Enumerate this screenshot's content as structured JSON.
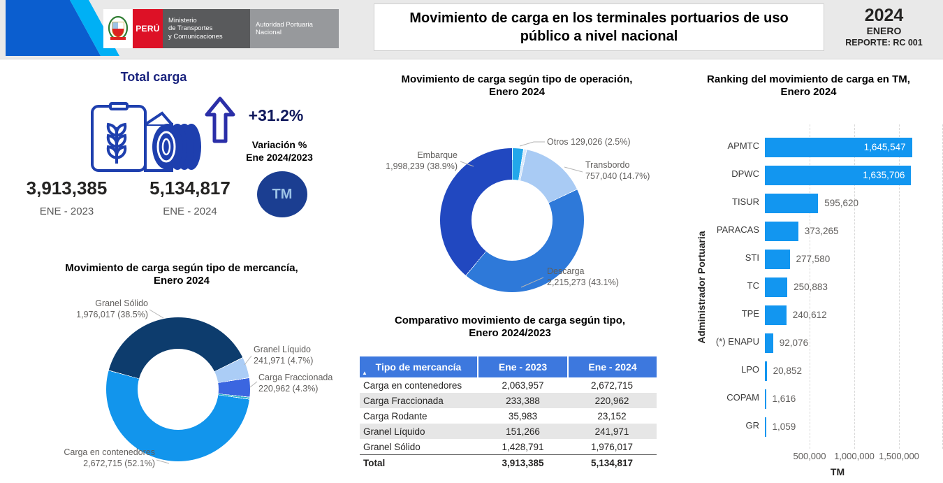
{
  "header": {
    "logo": {
      "peru": "PERÚ",
      "mtc_lines": [
        "Ministerio",
        "de Transportes",
        "y Comunicaciones"
      ],
      "apn_lines": [
        "Autoridad Portuaria",
        "Nacional"
      ]
    },
    "title": "Movimiento de carga en los terminales portuarios de uso público a nivel nacional",
    "year": "2024",
    "month": "ENERO",
    "report": "REPORTE: RC 001"
  },
  "total_carga": {
    "title": "Total carga",
    "variation_pct": "+31.2%",
    "variation_label_line1": "Variación %",
    "variation_label_line2": "Ene 2024/2023",
    "prev_value": "3,913,385",
    "prev_label": "ENE - 2023",
    "curr_value": "5,134,817",
    "curr_label": "ENE - 2024",
    "unit_badge": "TM"
  },
  "chart_data": [
    {
      "type": "pie",
      "title_line1": "Movimiento de carga según tipo de operación,",
      "title_line2": "Enero 2024",
      "start_deg": 0,
      "segments": [
        {
          "label": "Otros",
          "value": 129026,
          "value_text": "Otros 129,026 (2.5%)",
          "deg": 9.0,
          "color": "#22a7ea"
        },
        {
          "label": "",
          "value": null,
          "value_text": "",
          "deg": 2.5,
          "color": "#d9e9fb"
        },
        {
          "label": "Transbordo",
          "value": 757040,
          "value_text": "757,040 (14.7%)",
          "deg": 52.9,
          "color": "#a9cbf4"
        },
        {
          "label": "Descarga",
          "value": 2215273,
          "value_text": "2,215,273 (43.1%)",
          "deg": 155.2,
          "color": "#2e79d9"
        },
        {
          "label": "Embarque",
          "value": 1998239,
          "value_text": "1,998,239 (38.9%)",
          "deg": 140.4,
          "color": "#2148c0"
        }
      ]
    },
    {
      "type": "pie",
      "title_line1": "Movimiento de carga según tipo de mercancía,",
      "title_line2": "Enero 2024",
      "start_deg": -75,
      "segments": [
        {
          "label": "Granel Sólido",
          "value": 1976017,
          "value_text": "1,976,017 (38.5%)",
          "deg": 138.6,
          "color": "#0d3c6d"
        },
        {
          "label": "Granel Líquido",
          "value": 241971,
          "value_text": "241,971 (4.7%)",
          "deg": 16.9,
          "color": "#abcdf6"
        },
        {
          "label": "Carga Fraccionada",
          "value": 220962,
          "value_text": "220,962 (4.3%)",
          "deg": 15.5,
          "color": "#3b66e0"
        },
        {
          "label": "",
          "value": null,
          "value_text": "",
          "deg": 1.6,
          "color": "#29b1c8"
        },
        {
          "label": "Carga en contenedores",
          "value": 2672715,
          "value_text": "2,672,715 (52.1%)",
          "deg": 187.4,
          "color": "#1295ec"
        }
      ]
    },
    {
      "type": "bar",
      "title_line1": "Ranking del movimiento de carga en TM,",
      "title_line2": "Enero 2024",
      "xlabel": "TM",
      "ylabel": "Administrador Portuaria",
      "xlim": [
        0,
        2000000
      ],
      "x_ticks": [
        "500,000",
        "1,000,000",
        "1,500,000"
      ],
      "grid": "dashed-vertical",
      "bar_color": "#1296f0",
      "categories": [
        "APMTC",
        "DPWC",
        "TISUR",
        "PARACAS",
        "STI",
        "TC",
        "TPE",
        "(*) ENAPU",
        "LPO",
        "COPAM",
        "GR"
      ],
      "values": [
        1645547,
        1635706,
        595620,
        373265,
        277580,
        250883,
        240612,
        92076,
        20852,
        1616,
        1059
      ],
      "value_labels": [
        "1,645,547",
        "1,635,706",
        "595,620",
        "373,265",
        "277,580",
        "250,883",
        "240,612",
        "92,076",
        "20,852",
        "1,616",
        "1,059"
      ]
    }
  ],
  "comparative_table": {
    "title_line1": "Comparativo movimiento de carga según tipo,",
    "title_line2": "Enero 2024/2023",
    "columns": [
      "Tipo de mercancía",
      "Ene - 2023",
      "Ene - 2024"
    ],
    "rows": [
      [
        "Carga en contenedores",
        "2,063,957",
        "2,672,715"
      ],
      [
        "Carga Fraccionada",
        "233,388",
        "220,962"
      ],
      [
        "Carga Rodante",
        "35,983",
        "23,152"
      ],
      [
        "Granel Líquido",
        "151,266",
        "241,971"
      ],
      [
        "Granel Sólido",
        "1,428,791",
        "1,976,017"
      ]
    ],
    "total_row": [
      "Total",
      "3,913,385",
      "5,134,817"
    ]
  }
}
